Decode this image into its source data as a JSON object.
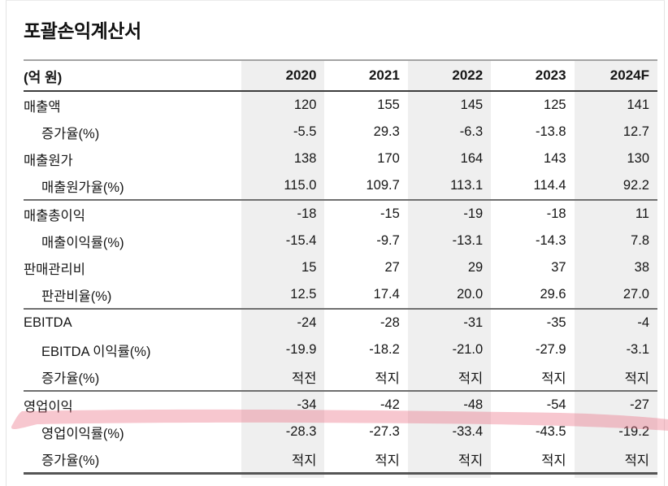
{
  "title": "포괄손익계산서",
  "table": {
    "unit_label": "(억 원)",
    "columns": [
      "2020",
      "2021",
      "2022",
      "2023",
      "2024F"
    ],
    "rows": [
      {
        "label": "매출액",
        "indent": false,
        "section_end": false,
        "highlighted": false,
        "values": [
          "120",
          "155",
          "145",
          "125",
          "141"
        ]
      },
      {
        "label": "증가율(%)",
        "indent": true,
        "section_end": false,
        "highlighted": false,
        "values": [
          "-5.5",
          "29.3",
          "-6.3",
          "-13.8",
          "12.7"
        ]
      },
      {
        "label": "매출원가",
        "indent": false,
        "section_end": false,
        "highlighted": false,
        "values": [
          "138",
          "170",
          "164",
          "143",
          "130"
        ]
      },
      {
        "label": "매출원가율(%)",
        "indent": true,
        "section_end": true,
        "highlighted": false,
        "values": [
          "115.0",
          "109.7",
          "113.1",
          "114.4",
          "92.2"
        ]
      },
      {
        "label": "매출총이익",
        "indent": false,
        "section_end": false,
        "highlighted": false,
        "values": [
          "-18",
          "-15",
          "-19",
          "-18",
          "11"
        ]
      },
      {
        "label": "매출이익률(%)",
        "indent": true,
        "section_end": false,
        "highlighted": false,
        "values": [
          "-15.4",
          "-9.7",
          "-13.1",
          "-14.3",
          "7.8"
        ]
      },
      {
        "label": "판매관리비",
        "indent": false,
        "section_end": false,
        "highlighted": false,
        "values": [
          "15",
          "27",
          "29",
          "37",
          "38"
        ]
      },
      {
        "label": "판관비율(%)",
        "indent": true,
        "section_end": true,
        "highlighted": false,
        "values": [
          "12.5",
          "17.4",
          "20.0",
          "29.6",
          "27.0"
        ]
      },
      {
        "label": "EBITDA",
        "indent": false,
        "section_end": false,
        "highlighted": false,
        "values": [
          "-24",
          "-28",
          "-31",
          "-35",
          "-4"
        ]
      },
      {
        "label": "EBITDA 이익률(%)",
        "indent": true,
        "section_end": false,
        "highlighted": false,
        "values": [
          "-19.9",
          "-18.2",
          "-21.0",
          "-27.9",
          "-3.1"
        ]
      },
      {
        "label": "증가율(%)",
        "indent": true,
        "section_end": true,
        "highlighted": false,
        "values": [
          "적전",
          "적지",
          "적지",
          "적지",
          "적지"
        ]
      },
      {
        "label": "영업이익",
        "indent": false,
        "section_end": false,
        "highlighted": true,
        "values": [
          "-34",
          "-42",
          "-48",
          "-54",
          "-27"
        ]
      },
      {
        "label": "영업이익률(%)",
        "indent": true,
        "section_end": false,
        "highlighted": false,
        "values": [
          "-28.3",
          "-27.3",
          "-33.4",
          "-43.5",
          "-19.2"
        ]
      },
      {
        "label": "증가율(%)",
        "indent": true,
        "section_end": false,
        "highlighted": false,
        "values": [
          "적지",
          "적지",
          "적지",
          "적지",
          "적지"
        ]
      }
    ]
  },
  "annotations": {
    "highlight_marker": {
      "row_label": "영업이익",
      "style": "pink-marker-stroke"
    }
  },
  "colors": {
    "shaded_column": "#efefef",
    "highlight_pink": "#ea7486",
    "rule_top": "#a3a3a3",
    "rule_header_bottom": "#3d3d3d",
    "rule_section": "#6f6f6f",
    "rule_bottom": "#555555",
    "text": "#161616",
    "card_border": "#e4e4e4"
  }
}
